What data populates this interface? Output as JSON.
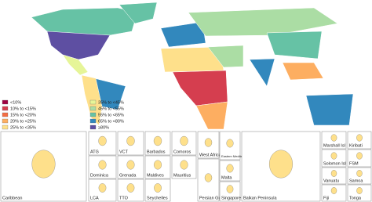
{
  "legend": {
    "items": [
      {
        "label": "<10%",
        "color": "#9e0142"
      },
      {
        "label": "10% to <15%",
        "color": "#d53e4f"
      },
      {
        "label": "15% to <20%",
        "color": "#f46d43"
      },
      {
        "label": "20% to <25%",
        "color": "#fdae61"
      },
      {
        "label": "25% to <35%",
        "color": "#fee08b"
      },
      {
        "label": "35% to <45%",
        "color": "#e6f598"
      },
      {
        "label": "45% to <55%",
        "color": "#abdda4"
      },
      {
        "label": "55% to <65%",
        "color": "#66c2a5"
      },
      {
        "label": "65% to <80%",
        "color": "#3288bd"
      },
      {
        "label": "≥80%",
        "color": "#5e4fa2"
      }
    ]
  },
  "insets": [
    "Caribbean",
    "ATG",
    "VCT",
    "Barbados",
    "Comoros",
    "Dominica",
    "Grenada",
    "Maldives",
    "Mauritius",
    "LCA",
    "TTO",
    "Seychelles",
    "West Africa",
    "Eastern Mediterranean",
    "Malta",
    "Persian Gulf",
    "Singapore",
    "Balkan Peninsula",
    "Marshall Isl",
    "Kiribati",
    "Solomon Isl",
    "FSM",
    "Vanuatu",
    "Samoa",
    "Fiji",
    "Tonga"
  ]
}
